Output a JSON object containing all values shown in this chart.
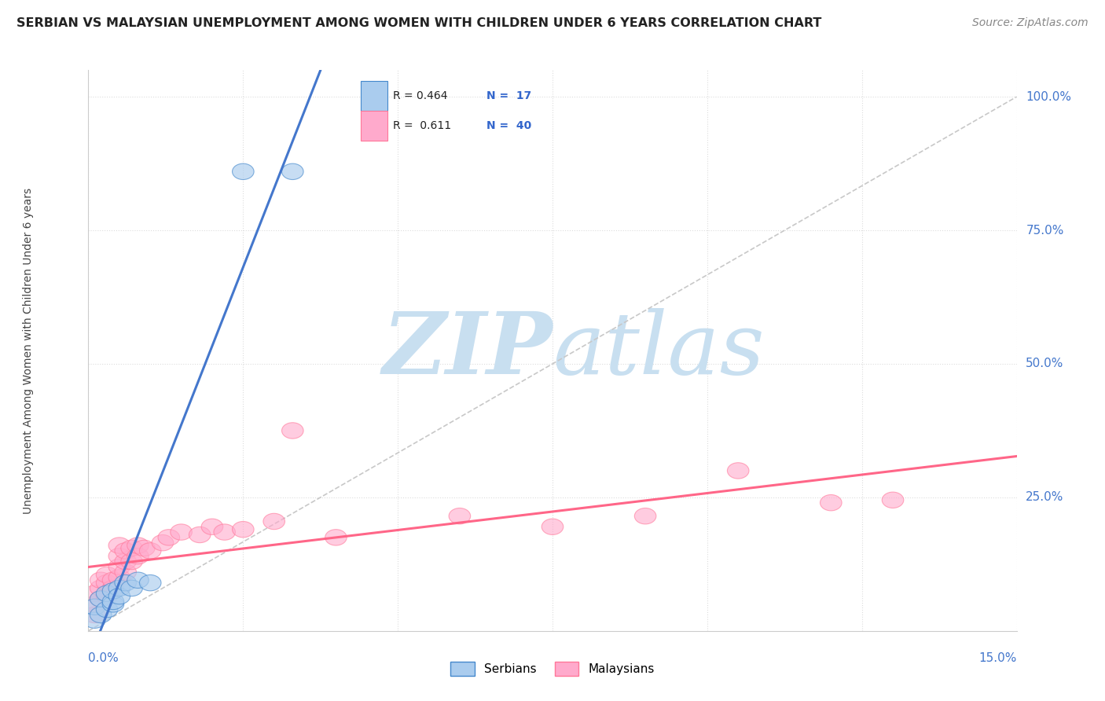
{
  "title": "SERBIAN VS MALAYSIAN UNEMPLOYMENT AMONG WOMEN WITH CHILDREN UNDER 6 YEARS CORRELATION CHART",
  "source": "Source: ZipAtlas.com",
  "ylabel_label": "Unemployment Among Women with Children Under 6 years",
  "legend_serbians": "Serbians",
  "legend_malaysians": "Malaysians",
  "blue_fill": "#AACCEE",
  "blue_edge": "#4488CC",
  "pink_fill": "#FFAACC",
  "pink_edge": "#FF7799",
  "blue_trend": "#4477CC",
  "pink_trend": "#FF6688",
  "ref_color": "#C8C8C8",
  "grid_color": "#DDDDDD",
  "right_label_color": "#4477CC",
  "watermark_zip_color": "#C8DFF0",
  "watermark_atlas_color": "#C8DFF0",
  "serbian_x": [
    0.001,
    0.001,
    0.002,
    0.002,
    0.003,
    0.003,
    0.004,
    0.004,
    0.004,
    0.005,
    0.005,
    0.006,
    0.007,
    0.008,
    0.01,
    0.025,
    0.033
  ],
  "serbian_y": [
    0.02,
    0.045,
    0.03,
    0.06,
    0.04,
    0.07,
    0.05,
    0.055,
    0.075,
    0.08,
    0.065,
    0.09,
    0.08,
    0.095,
    0.09,
    0.86,
    0.86
  ],
  "malaysian_x": [
    0.001,
    0.001,
    0.001,
    0.002,
    0.002,
    0.002,
    0.003,
    0.003,
    0.003,
    0.004,
    0.004,
    0.005,
    0.005,
    0.005,
    0.005,
    0.006,
    0.006,
    0.006,
    0.007,
    0.007,
    0.008,
    0.008,
    0.009,
    0.01,
    0.012,
    0.013,
    0.015,
    0.018,
    0.02,
    0.022,
    0.025,
    0.03,
    0.033,
    0.04,
    0.06,
    0.075,
    0.09,
    0.105,
    0.12,
    0.13
  ],
  "malaysian_y": [
    0.03,
    0.05,
    0.07,
    0.06,
    0.08,
    0.095,
    0.065,
    0.09,
    0.105,
    0.08,
    0.095,
    0.1,
    0.12,
    0.14,
    0.16,
    0.11,
    0.13,
    0.15,
    0.13,
    0.155,
    0.14,
    0.16,
    0.155,
    0.15,
    0.165,
    0.175,
    0.185,
    0.18,
    0.195,
    0.185,
    0.19,
    0.205,
    0.375,
    0.175,
    0.215,
    0.195,
    0.215,
    0.3,
    0.24,
    0.245
  ],
  "xmin": 0.0,
  "xmax": 0.15,
  "ymin": 0.0,
  "ymax": 1.05
}
